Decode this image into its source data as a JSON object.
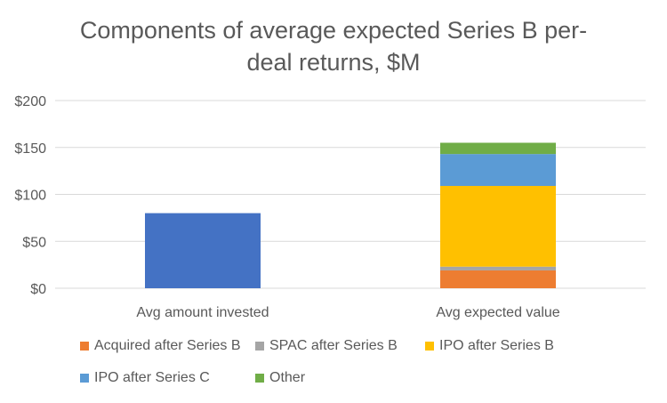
{
  "chart_data": {
    "type": "bar",
    "stacked": true,
    "title_lines": [
      "Components of average expected Series B per-",
      "deal returns, $M"
    ],
    "categories": [
      "Avg amount invested",
      "Avg expected value"
    ],
    "ylim": [
      0,
      200
    ],
    "yticks": [
      0,
      50,
      100,
      150,
      200
    ],
    "ytick_labels": [
      "$0",
      "$50",
      "$100",
      "$150",
      "$200"
    ],
    "grid": true,
    "legend_position": "bottom",
    "invested": {
      "category": "Avg amount invested",
      "value": 80,
      "color": "#4472C4"
    },
    "series": [
      {
        "name": "Acquired after Series B",
        "color": "#ED7D31",
        "values": [
          0,
          19
        ]
      },
      {
        "name": "SPAC after Series B",
        "color": "#A5A5A5",
        "values": [
          0,
          4
        ]
      },
      {
        "name": "IPO after Series B",
        "color": "#FFC000",
        "values": [
          0,
          86
        ]
      },
      {
        "name": "IPO after Series C",
        "color": "#5B9BD5",
        "values": [
          0,
          34
        ]
      },
      {
        "name": "Other",
        "color": "#70AD47",
        "values": [
          0,
          12
        ]
      }
    ]
  }
}
